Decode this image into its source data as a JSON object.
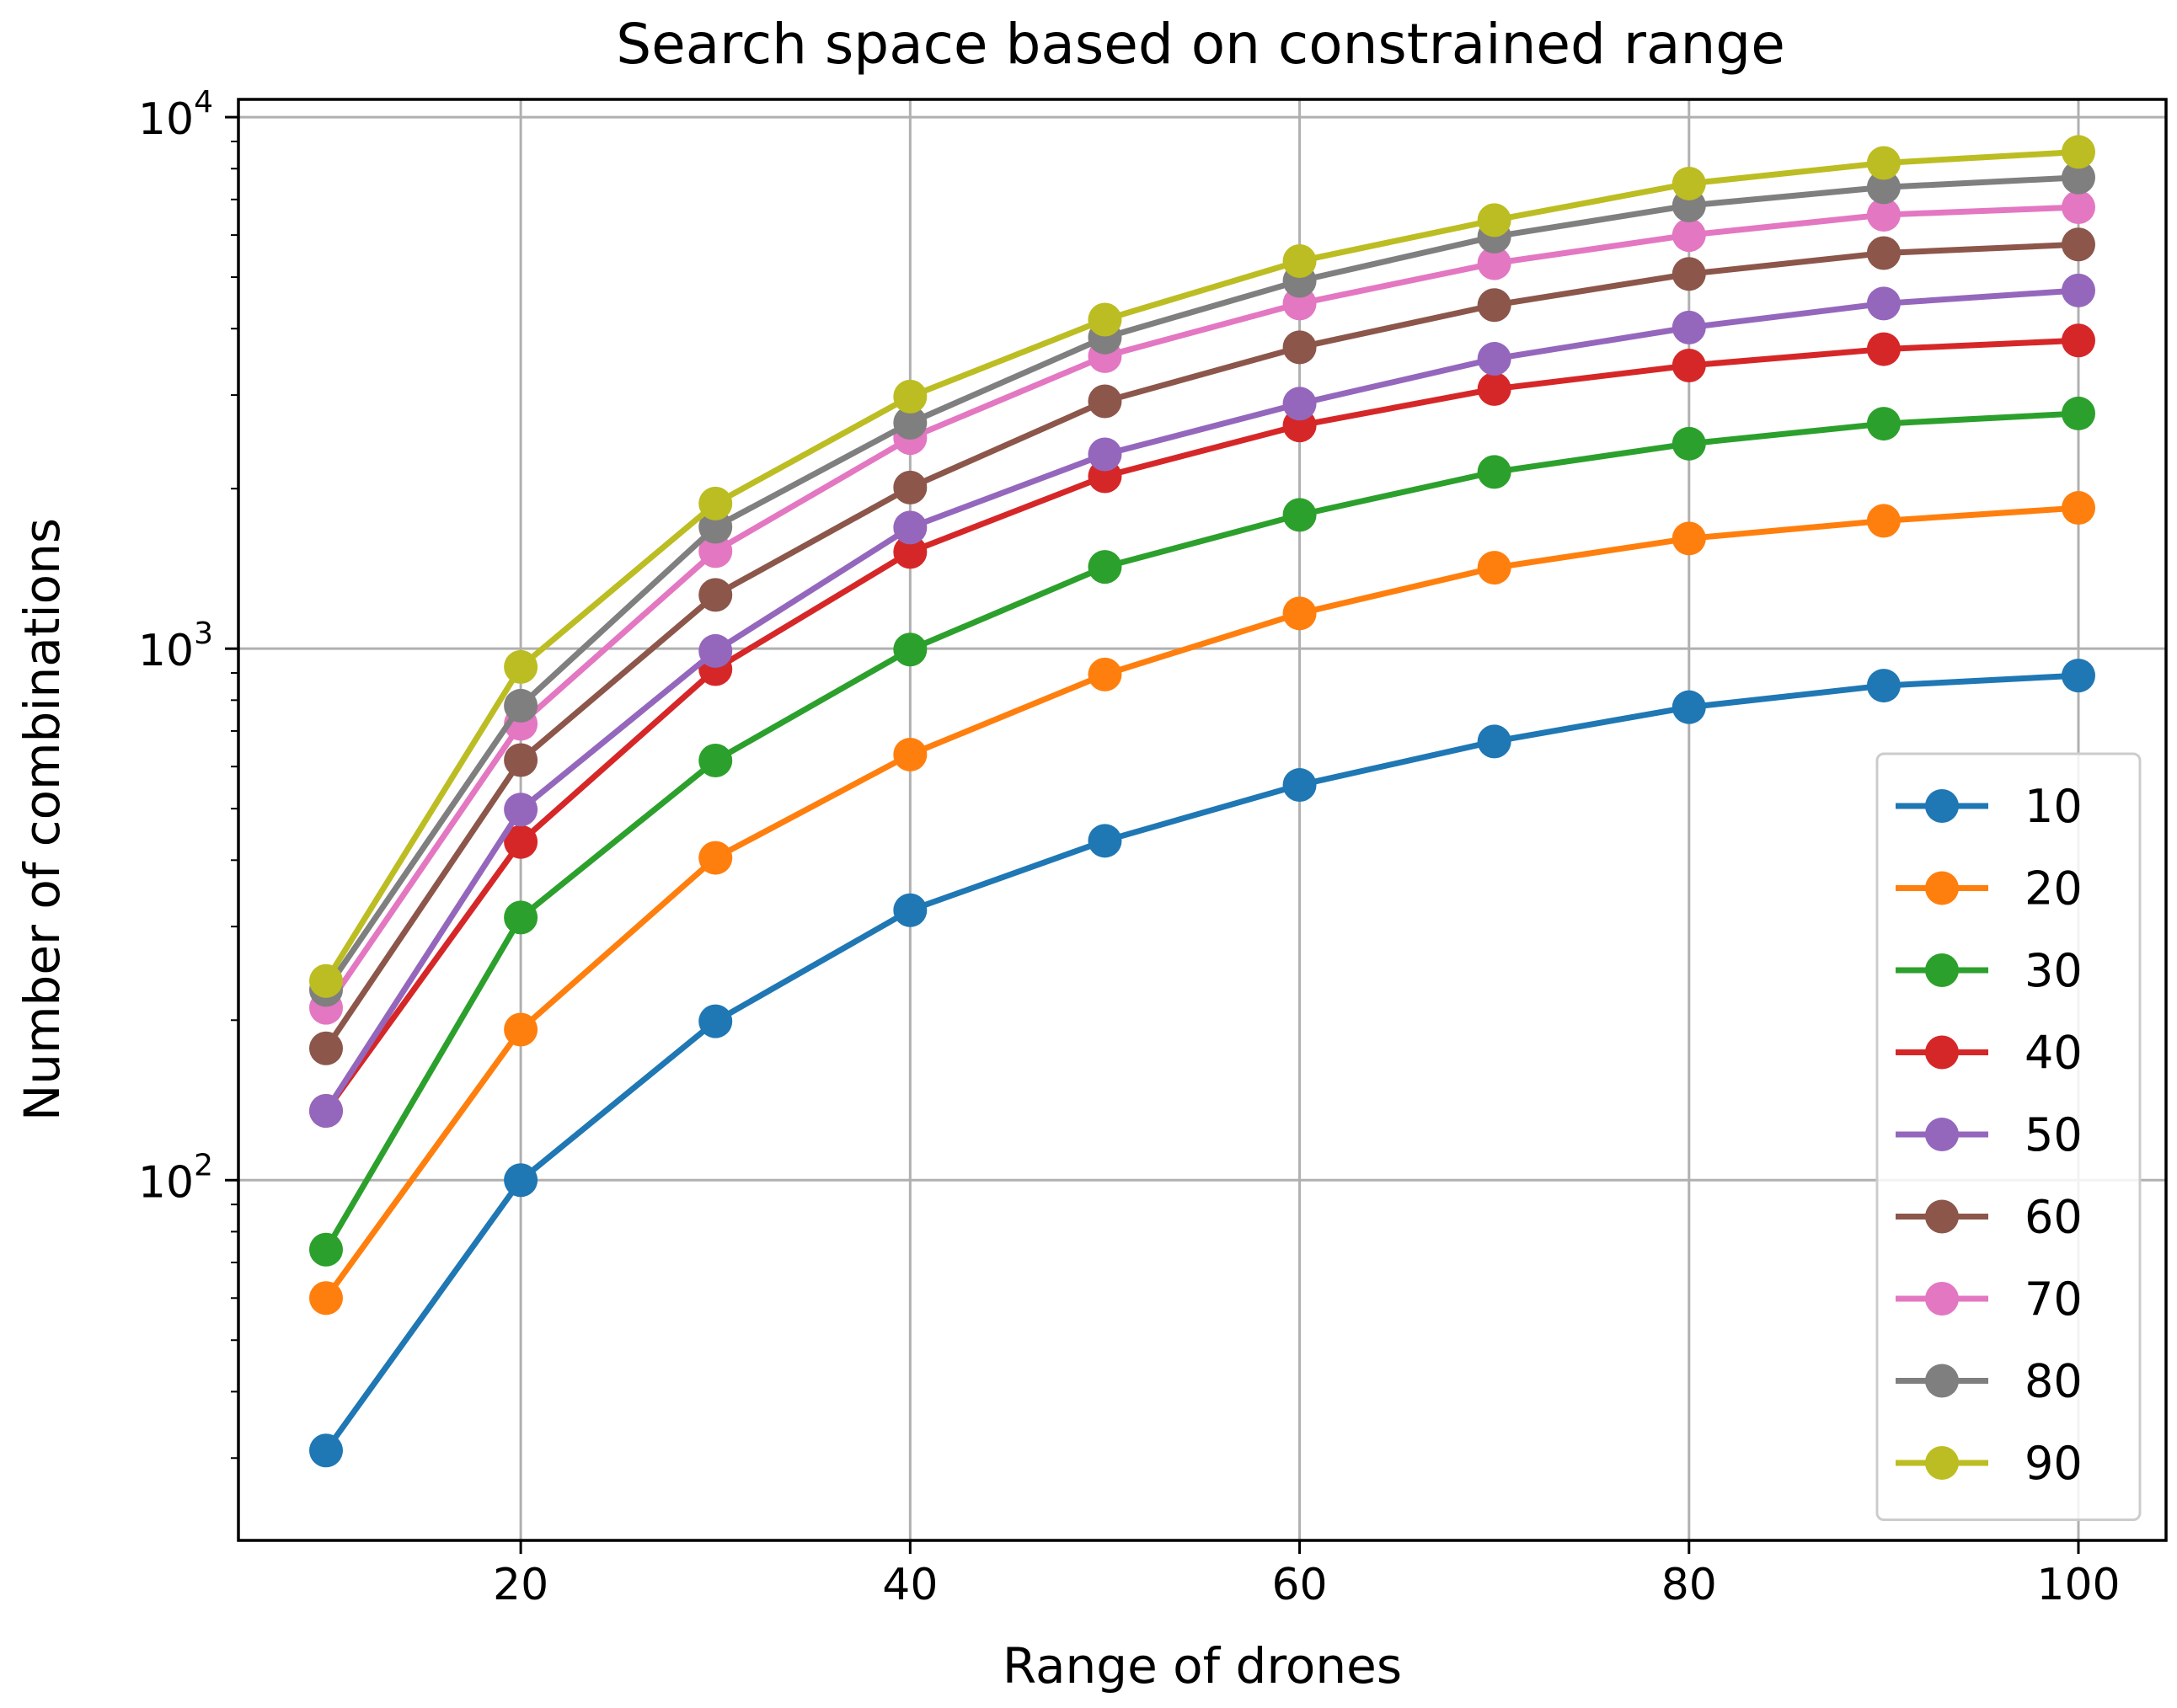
{
  "chart_data": {
    "type": "line",
    "title": "Search space based on constrained range",
    "xlabel": "Range of drones",
    "ylabel": "Number of combinations",
    "yscale": "log",
    "xlim": [
      5.5,
      104.5
    ],
    "ylim": [
      21,
      10800
    ],
    "xticks": [
      20,
      40,
      60,
      80,
      100
    ],
    "yticks": [
      {
        "value": 100,
        "base": "10",
        "exponent": "2"
      },
      {
        "value": 1000,
        "base": "10",
        "exponent": "3"
      },
      {
        "value": 10000,
        "base": "10",
        "exponent": "4"
      }
    ],
    "grid": true,
    "legend_position": "lower-right",
    "x": [
      10,
      20,
      30,
      40,
      50,
      60,
      70,
      80,
      90,
      100
    ],
    "series": [
      {
        "name": "10",
        "color": "#1f77b4",
        "values": [
          31,
          100,
          199,
          322,
          435,
          554,
          669,
          776,
          852,
          890
        ]
      },
      {
        "name": "20",
        "color": "#ff7f0e",
        "values": [
          60,
          192,
          404,
          632,
          894,
          1165,
          1420,
          1612,
          1740,
          1840
        ]
      },
      {
        "name": "30",
        "color": "#2ca02c",
        "values": [
          74,
          312,
          616,
          996,
          1425,
          1785,
          2150,
          2430,
          2650,
          2770
        ]
      },
      {
        "name": "40",
        "color": "#d62728",
        "values": [
          135,
          433,
          915,
          1520,
          2110,
          2630,
          3080,
          3410,
          3660,
          3800
        ]
      },
      {
        "name": "50",
        "color": "#9467bd",
        "values": [
          135,
          498,
          990,
          1690,
          2320,
          2890,
          3510,
          4020,
          4460,
          4720
        ]
      },
      {
        "name": "60",
        "color": "#8c564b",
        "values": [
          177,
          617,
          1262,
          2010,
          2920,
          3690,
          4430,
          5070,
          5550,
          5760
        ]
      },
      {
        "name": "70",
        "color": "#e377c2",
        "values": [
          211,
          722,
          1526,
          2490,
          3550,
          4460,
          5310,
          6000,
          6550,
          6770
        ]
      },
      {
        "name": "80",
        "color": "#7f7f7f",
        "values": [
          228,
          781,
          1695,
          2660,
          3850,
          4920,
          5960,
          6820,
          7380,
          7700
        ]
      },
      {
        "name": "90",
        "color": "#bcbd22",
        "values": [
          237,
          924,
          1875,
          2980,
          4160,
          5360,
          6400,
          7500,
          8200,
          8600
        ]
      }
    ]
  }
}
